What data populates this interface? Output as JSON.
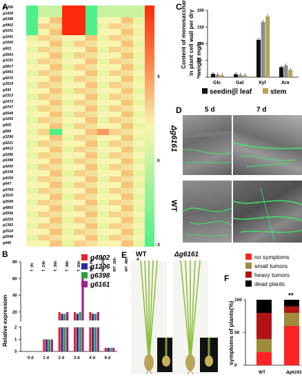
{
  "panels": {
    "a": "A",
    "b": "B",
    "c": "C",
    "d": "D",
    "e": "E",
    "f": "F"
  },
  "heatmap": {
    "genes": [
      "g1206",
      "g1428",
      "g6398",
      "g4902",
      "g6161",
      "g1041",
      "g1600",
      "g663",
      "g5543",
      "g3151",
      "g5817",
      "g5443",
      "g5070",
      "g3519",
      "g430",
      "g2313",
      "g2473",
      "g6707",
      "g5548",
      "g1005",
      "g665",
      "g684",
      "g3296",
      "g6221",
      "g4412",
      "g5286",
      "g6399",
      "g4266",
      "g6338",
      "g4159",
      "g647",
      "g5769",
      "g3510",
      "g2649",
      "g4865",
      "g5558",
      "g6225",
      "g1362",
      "g2514",
      "g2648",
      "g440"
    ],
    "columns": [
      "T_0h",
      "T_24h",
      "T_36h",
      "T_48h",
      "T_60h",
      "MT_0h",
      "MT_24h",
      "MT_36h",
      "MT_48h",
      "MT_60h"
    ],
    "colorbar_ticks": [
      "3",
      "0",
      "-3"
    ],
    "colors": {
      "high": "#ff2a0d",
      "mid": "#f7f5b0",
      "low": "#4ef08a"
    }
  },
  "chart_data": [
    {
      "type": "bar",
      "panel": "B",
      "title": "",
      "xlabel": "",
      "ylabel": "Relative expression",
      "categories": [
        "0 d",
        "1 d",
        "2 d",
        "3 d",
        "4 d",
        "6 d"
      ],
      "series": [
        {
          "name": "g4902",
          "color": "#e8232a",
          "values": [
            0.0,
            1.0,
            20,
            20,
            20,
            0.3
          ]
        },
        {
          "name": "g1206",
          "color": "#2a2aa0",
          "values": [
            0.0,
            1.0,
            18,
            18,
            18,
            0.3
          ]
        },
        {
          "name": "g6398",
          "color": "#2e9e3e",
          "values": [
            0.0,
            1.0,
            18,
            20,
            18,
            0.3
          ]
        },
        {
          "name": "g6161",
          "color": "#a0208a",
          "values": [
            0.0,
            1.0,
            20,
            60,
            20,
            0.3
          ]
        }
      ],
      "ylim_low": [
        0,
        2
      ],
      "ylim_high": [
        10,
        80
      ],
      "yticks_low": [
        "0",
        "1",
        "2"
      ],
      "yticks_high": [
        "20",
        "40",
        "60",
        "80"
      ],
      "axis_break": true
    },
    {
      "type": "bar",
      "panel": "C",
      "title": "",
      "xlabel": "",
      "ylabel": "Content of monosaccharides in plant cell wall per dry weight mg/g",
      "categories": [
        "Glc",
        "Gal",
        "Xyl",
        "Ara"
      ],
      "series": [
        {
          "name": "seeding",
          "color": "#111111",
          "values": [
            10,
            9,
            112,
            30
          ]
        },
        {
          "name": "leaf",
          "color": "#8c8c8c",
          "values": [
            8,
            7,
            165,
            35
          ]
        },
        {
          "name": "stem",
          "color": "#b3a35a",
          "values": [
            6,
            6,
            182,
            22
          ]
        }
      ],
      "ylim": [
        0,
        200
      ],
      "yticks": [
        "0",
        "50",
        "100",
        "150",
        "200"
      ]
    },
    {
      "type": "bar",
      "panel": "F",
      "stacked": true,
      "title": "",
      "xlabel": "",
      "ylabel": "symptoms of plants(%)",
      "categories": [
        "WT",
        "Δg6161"
      ],
      "series": [
        {
          "name": "no symptoms",
          "color": "#ff2424",
          "values": [
            20,
            60
          ]
        },
        {
          "name": "small tumors",
          "color": "#9e8c3c",
          "values": [
            20,
            20
          ]
        },
        {
          "name": "heavy tumors",
          "color": "#b01414",
          "values": [
            40,
            10
          ]
        },
        {
          "name": "dead plants",
          "color": "#000000",
          "values": [
            20,
            10
          ]
        }
      ],
      "ylim": [
        0,
        100
      ],
      "yticks": [
        "0",
        "50",
        "100"
      ],
      "annotation": "**"
    }
  ],
  "panel_d": {
    "col_labels": [
      "5 d",
      "7 d"
    ],
    "row_labels": [
      "Δg6161",
      "WT"
    ]
  },
  "panel_e": {
    "labels": [
      "WT",
      "Δg6161"
    ]
  }
}
